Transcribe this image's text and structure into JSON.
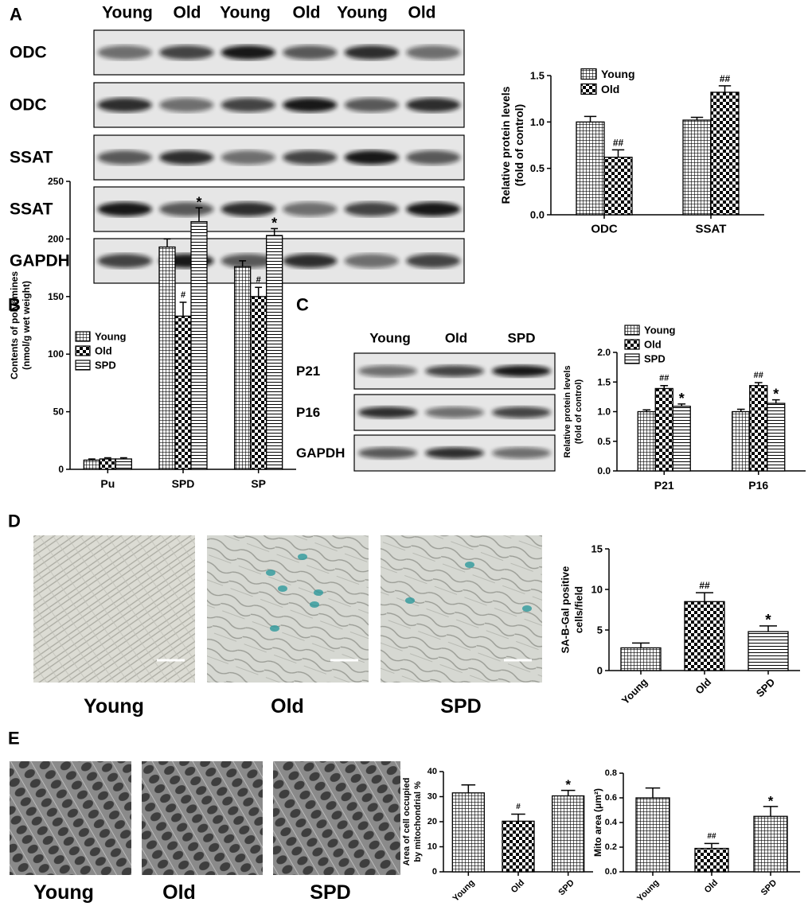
{
  "figure": {
    "panel_labels": [
      "A",
      "B",
      "C",
      "D",
      "E"
    ],
    "blot_a": {
      "lanes": [
        "Young",
        "Old",
        "Young",
        "Old",
        "Young",
        "Old"
      ],
      "rows": [
        "ODC",
        "ODC",
        "SSAT",
        "SSAT",
        "GAPDH"
      ]
    },
    "blot_c": {
      "lanes": [
        "Young",
        "Old",
        "SPD"
      ],
      "rows": [
        "P21",
        "P16",
        "GAPDH"
      ]
    },
    "micrographs_d": [
      "Young",
      "Old",
      "SPD"
    ],
    "micrographs_e": [
      "Young",
      "Old",
      "SPD"
    ]
  },
  "chart_data": [
    {
      "type": "bar",
      "categories": [
        "ODC",
        "SSAT"
      ],
      "ylabel": [
        "Relative protein levels",
        "(fold of control)"
      ],
      "ylim": [
        0,
        1.5
      ],
      "yticks": [
        {
          "value": 0,
          "label": "0.0"
        },
        0.5,
        {
          "value": 1,
          "label": "1.0"
        },
        1.5
      ],
      "legend": "upper-left",
      "series": [
        {
          "name": "Young",
          "color": "#000000",
          "pattern": "crosshatch",
          "values": [
            1.0,
            1.02
          ],
          "errors": [
            0.06,
            0.03
          ]
        },
        {
          "name": "Old",
          "color": "#000000",
          "pattern": "checker",
          "values": [
            0.62,
            1.32
          ],
          "errors": [
            0.08,
            0.07
          ],
          "annotations": [
            "##",
            "##"
          ]
        }
      ]
    },
    {
      "type": "bar",
      "categories": [
        "Pu",
        "SPD",
        "SP"
      ],
      "ylabel": [
        "Contents of polyamines",
        "(nmol/g wet weight)"
      ],
      "ylim": [
        0,
        250
      ],
      "yticks": [
        0,
        50,
        100,
        150,
        200,
        250
      ],
      "legend": "upper-left",
      "series": [
        {
          "name": "Young",
          "color": "#000000",
          "pattern": "crosshatch",
          "values": [
            8,
            193,
            176
          ],
          "errors": [
            1,
            7,
            5
          ]
        },
        {
          "name": "Old",
          "color": "#000000",
          "pattern": "checker",
          "values": [
            9,
            133,
            150
          ],
          "errors": [
            1,
            12,
            8
          ],
          "annotations": [
            null,
            "#",
            "#"
          ]
        },
        {
          "name": "SPD",
          "color": "#000000",
          "pattern": "hlines",
          "values": [
            9,
            215,
            203
          ],
          "errors": [
            1,
            12,
            6
          ],
          "annotations": [
            null,
            "*",
            "*"
          ]
        }
      ]
    },
    {
      "type": "bar",
      "categories": [
        "P21",
        "P16"
      ],
      "ylabel": [
        "Relative protein levels",
        "(fold of control)"
      ],
      "ylim": [
        0,
        2
      ],
      "yticks": [
        {
          "value": 0,
          "label": "0.0"
        },
        0.5,
        {
          "value": 1,
          "label": "1.0"
        },
        1.5,
        {
          "value": 2,
          "label": "2.0"
        }
      ],
      "legend": "upper-left",
      "series": [
        {
          "name": "Young",
          "color": "#000000",
          "pattern": "crosshatch",
          "values": [
            1.0,
            1.0
          ],
          "errors": [
            0.03,
            0.04
          ]
        },
        {
          "name": "Old",
          "color": "#000000",
          "pattern": "checker",
          "values": [
            1.39,
            1.44
          ],
          "errors": [
            0.05,
            0.05
          ],
          "annotations": [
            "##",
            "##"
          ]
        },
        {
          "name": "SPD",
          "color": "#000000",
          "pattern": "hlines",
          "values": [
            1.09,
            1.14
          ],
          "errors": [
            0.04,
            0.06
          ],
          "annotations": [
            "*",
            "*"
          ]
        }
      ]
    },
    {
      "type": "bar",
      "categories": [
        "Young",
        "Old",
        "SPD"
      ],
      "ylabel": [
        "SA-B-Gal positive",
        "cells/field"
      ],
      "ylim": [
        0,
        15
      ],
      "yticks": [
        0,
        5,
        10,
        15
      ],
      "xtick_rotation": -45,
      "color": "#000000",
      "patterns": [
        "crosshatch",
        "checker",
        "hlines"
      ],
      "values": [
        2.8,
        8.5,
        4.8
      ],
      "errors": [
        0.6,
        1.1,
        0.7
      ],
      "annotations": [
        null,
        "##",
        "*"
      ]
    },
    {
      "type": "bar",
      "categories": [
        "Young",
        "Old",
        "SPD"
      ],
      "ylabel": [
        "Area of cell occupied",
        "by mitochondrial %"
      ],
      "ylim": [
        0,
        40
      ],
      "yticks": [
        0,
        10,
        20,
        30,
        40
      ],
      "xtick_rotation": -45,
      "color": "#000000",
      "patterns": [
        "crosshatch",
        "checker",
        "crosshatch"
      ],
      "values": [
        31.5,
        20.2,
        30.3
      ],
      "errors": [
        3.2,
        2.8,
        2.2
      ],
      "annotations": [
        null,
        "#",
        "*"
      ]
    },
    {
      "type": "bar",
      "categories": [
        "Young",
        "Old",
        "SPD"
      ],
      "ylabel": [
        "Mito area (μm²)"
      ],
      "ylim": [
        0,
        0.8
      ],
      "yticks": [
        {
          "value": 0,
          "label": "0.0"
        },
        0.2,
        0.4,
        0.6,
        0.8
      ],
      "xtick_rotation": -45,
      "color": "#000000",
      "patterns": [
        "crosshatch",
        "checker",
        "crosshatch"
      ],
      "values": [
        0.6,
        0.19,
        0.45
      ],
      "errors": [
        0.08,
        0.04,
        0.08
      ],
      "annotations": [
        null,
        "##",
        "*"
      ]
    }
  ]
}
